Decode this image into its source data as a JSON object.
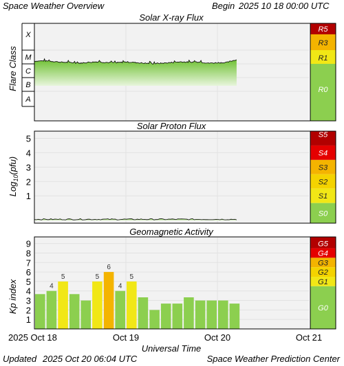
{
  "header": {
    "title": "Space Weather Overview",
    "begin_label": "Begin",
    "begin_value": "2025 10 18 00:00 UTC"
  },
  "footer": {
    "updated_label": "Updated",
    "updated_value": "2025 Oct 20 06:04 UTC",
    "source": "Space Weather Prediction Center"
  },
  "colors": {
    "plot_bg": "#f2f2f2",
    "grid": "#e2e2e2",
    "green": "#8ccf4f",
    "yellow": "#f1e716",
    "orange": "#f4b400",
    "red": "#e50000",
    "darkred": "#b20000"
  },
  "chart_data": [
    {
      "type": "area",
      "title": "Solar X-ray Flux",
      "ylabel": "Flare Class",
      "y_classes": [
        "A",
        "B",
        "C",
        "M",
        "X"
      ],
      "x_ticks": [
        "2025 Oct 18",
        "Oct 19",
        "Oct 20",
        "Oct 21"
      ],
      "xlim_days": [
        0,
        3
      ],
      "data_end_day": 2.21,
      "series": [
        {
          "x_day": [
            0.0,
            0.1,
            0.2,
            0.3,
            0.4,
            0.5,
            0.6,
            0.7,
            0.8,
            0.9,
            1.0,
            1.1,
            1.2,
            1.3,
            1.4,
            1.5,
            1.6,
            1.7,
            1.8,
            1.9,
            2.0,
            2.1,
            2.2
          ],
          "level": [
            3.2,
            3.22,
            3.18,
            3.12,
            3.1,
            3.05,
            3.12,
            3.15,
            3.1,
            3.08,
            3.14,
            3.1,
            3.05,
            3.02,
            3.05,
            3.1,
            3.15,
            3.12,
            3.15,
            3.05,
            3.08,
            3.1,
            3.3
          ]
        }
      ],
      "scale": [
        {
          "label": "R5",
          "color": "#b20000"
        },
        {
          "label": "R3",
          "color": "#f4b400"
        },
        {
          "label": "R1",
          "color": "#f1e716"
        },
        {
          "label": "R0",
          "color": "#8ccf4f"
        }
      ]
    },
    {
      "type": "area",
      "title": "Solar Proton Flux",
      "ylabel": "Log10(pfu)",
      "y_ticks": [
        "1",
        "2",
        "3",
        "4",
        "5"
      ],
      "ylim": [
        -0.9,
        5.5
      ],
      "xlim_days": [
        0,
        3
      ],
      "data_end_day": 2.21,
      "series": [
        {
          "x_day": [
            0.0,
            0.5,
            1.0,
            1.5,
            2.0,
            2.2
          ],
          "log_pfu": [
            -0.63,
            -0.62,
            -0.63,
            -0.62,
            -0.63,
            -0.63
          ]
        }
      ],
      "scale": [
        {
          "label": "S5",
          "color": "#b20000"
        },
        {
          "label": "S4",
          "color": "#e50000"
        },
        {
          "label": "S3",
          "color": "#f4b400"
        },
        {
          "label": "S2",
          "color": "#f4d300"
        },
        {
          "label": "S1",
          "color": "#f1e716"
        },
        {
          "label": "S0",
          "color": "#8ccf4f"
        }
      ]
    },
    {
      "type": "bar",
      "title": "Geomagnetic Activity",
      "ylabel": "Kp index",
      "y_ticks": [
        "1",
        "2",
        "3",
        "4",
        "5",
        "6",
        "7",
        "8",
        "9"
      ],
      "ylim": [
        0,
        9.7
      ],
      "xlim_days": [
        0,
        3
      ],
      "x_ticks": [
        "2025 Oct 18",
        "Oct 19",
        "Oct 20",
        "Oct 21"
      ],
      "xlabel": "Universal Time",
      "bar_hours": 3,
      "values": [
        3.67,
        4,
        5,
        3.67,
        3,
        5,
        6,
        4,
        5,
        3.33,
        2,
        2.67,
        2.67,
        3.33,
        3,
        3,
        3,
        2.67
      ],
      "value_labels": [
        "",
        "4",
        "5",
        "",
        "",
        "5",
        "6",
        "4",
        "5",
        "",
        "",
        "",
        "",
        "",
        "",
        "",
        "",
        ""
      ],
      "scale": [
        {
          "label": "G5",
          "color": "#b20000"
        },
        {
          "label": "G4",
          "color": "#e50000"
        },
        {
          "label": "G3",
          "color": "#f4b400"
        },
        {
          "label": "G2",
          "color": "#f4d300"
        },
        {
          "label": "G1",
          "color": "#f1e716"
        },
        {
          "label": "G0",
          "color": "#8ccf4f"
        }
      ]
    }
  ]
}
